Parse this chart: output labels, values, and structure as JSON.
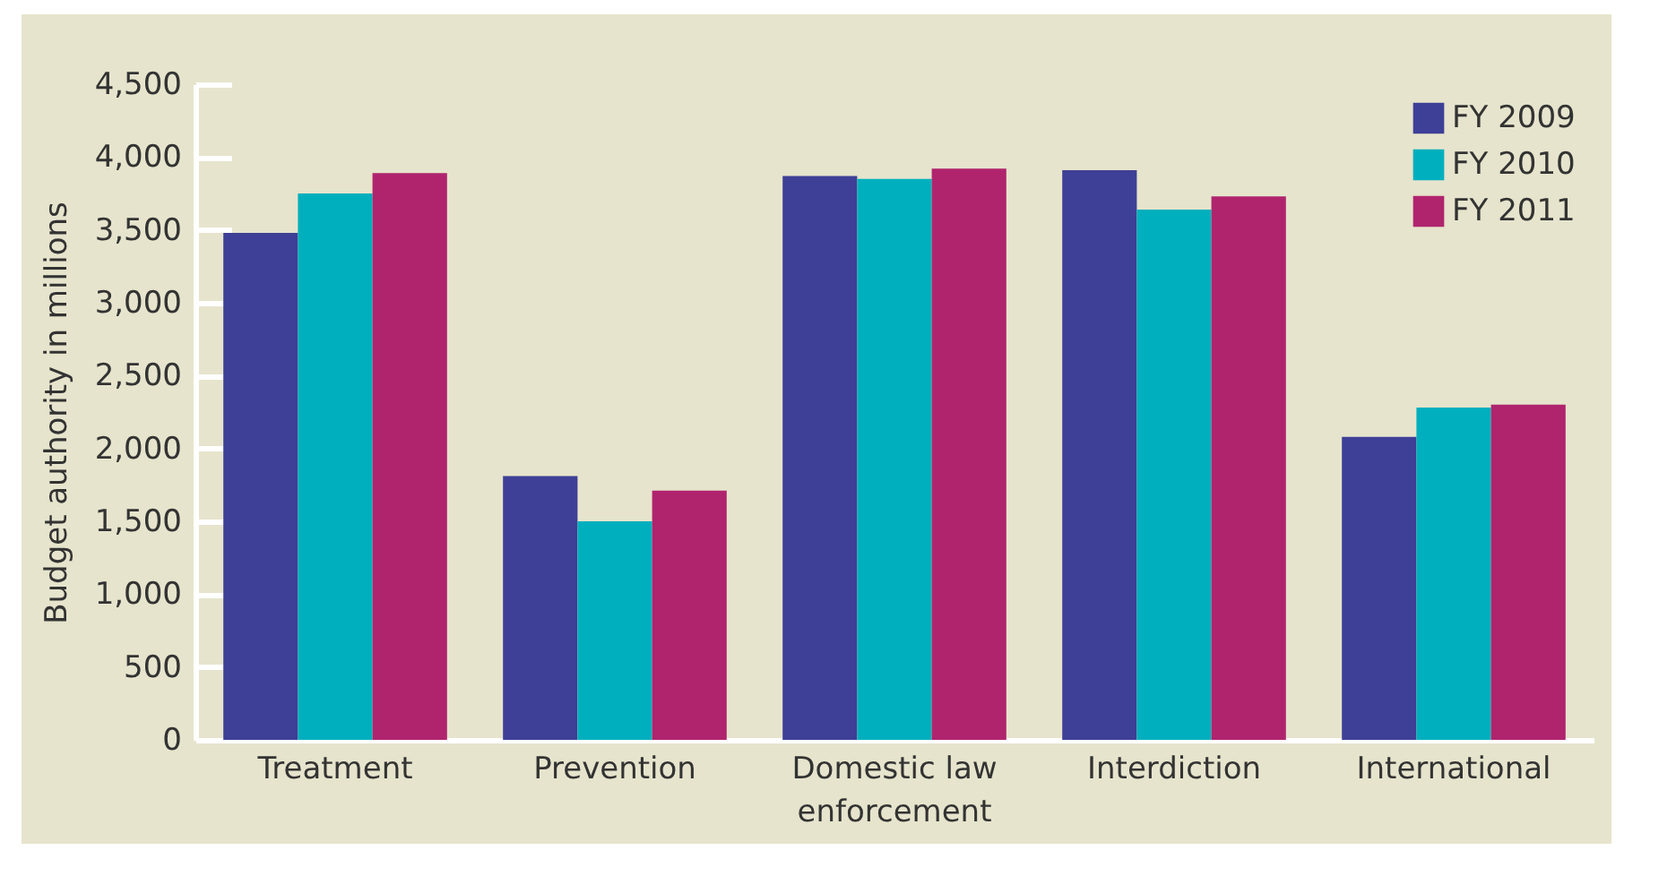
{
  "chart_data": {
    "type": "bar",
    "ylabel": "Budget authority in millions",
    "categories": [
      "Treatment",
      "Prevention",
      "Domestic law\nenforcement",
      "Interdiction",
      "International"
    ],
    "series": [
      {
        "name": "FY 2009",
        "color": "#3e3f96",
        "values": [
          3480,
          1810,
          3870,
          3910,
          2080
        ]
      },
      {
        "name": "FY 2010",
        "color": "#00afbd",
        "values": [
          3750,
          1500,
          3850,
          3640,
          2280
        ]
      },
      {
        "name": "FY 2011",
        "color": "#b0246e",
        "values": [
          3890,
          1710,
          3920,
          3730,
          2300
        ]
      }
    ],
    "ylim": [
      0,
      4500
    ],
    "yticks": [
      0,
      500,
      {
        "value": 1000,
        "label": "1,000"
      },
      {
        "value": 1500,
        "label": "1,500"
      },
      {
        "value": 2000,
        "label": "2,000"
      },
      {
        "value": 2500,
        "label": "2,500"
      },
      {
        "value": 3000,
        "label": "3,000"
      },
      {
        "value": 3500,
        "label": "3,500"
      },
      {
        "value": 4000,
        "label": "4,000"
      },
      {
        "value": 4500,
        "label": "4,500"
      }
    ],
    "legend": "top right",
    "grid": false
  }
}
